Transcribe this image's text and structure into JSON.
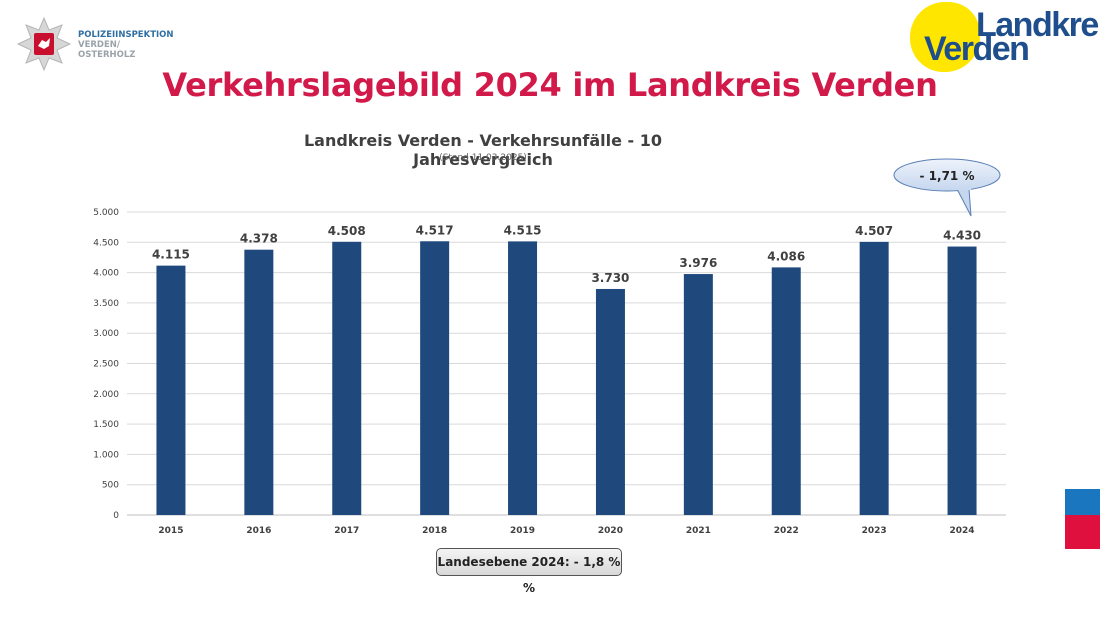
{
  "header": {
    "police_lines": [
      "POLIZEIINSPEKTION",
      "VERDEN/",
      "OSTERHOLZ"
    ],
    "landkreis_line1": "Landkreis",
    "landkreis_line2": "Verden"
  },
  "slide_title": "Verkehrslagebild 2024 im Landkreis Verden",
  "callout": "- 1,71 %",
  "footer_box": "Landesebene 2024: - 1,8 % %",
  "colors": {
    "bar": "#1f497d",
    "title": "#d21a4a",
    "grid": "#d9d9d9"
  },
  "chart_data": {
    "type": "bar",
    "title": "Landkreis Verden - Verkehrsunfälle - 10 Jahresvergleich",
    "subtitle": "(Stand 11.03.2025)",
    "categories": [
      "2015",
      "2016",
      "2017",
      "2018",
      "2019",
      "2020",
      "2021",
      "2022",
      "2023",
      "2024"
    ],
    "values": [
      4115,
      4378,
      4508,
      4517,
      4515,
      3730,
      3976,
      4086,
      4507,
      4430
    ],
    "value_labels": [
      "4.115",
      "4.378",
      "4.508",
      "4.517",
      "4.515",
      "3.730",
      "3.976",
      "4.086",
      "4.507",
      "4.430"
    ],
    "ylim": [
      0,
      5000
    ],
    "yticks": [
      0,
      500,
      1000,
      1500,
      2000,
      2500,
      3000,
      3500,
      4000,
      4500,
      5000
    ],
    "ytick_labels": [
      "0",
      "500",
      "1.000",
      "1.500",
      "2.000",
      "2.500",
      "3.000",
      "3.500",
      "4.000",
      "4.500",
      "5.000"
    ],
    "grid": true,
    "xlabel": "",
    "ylabel": ""
  }
}
